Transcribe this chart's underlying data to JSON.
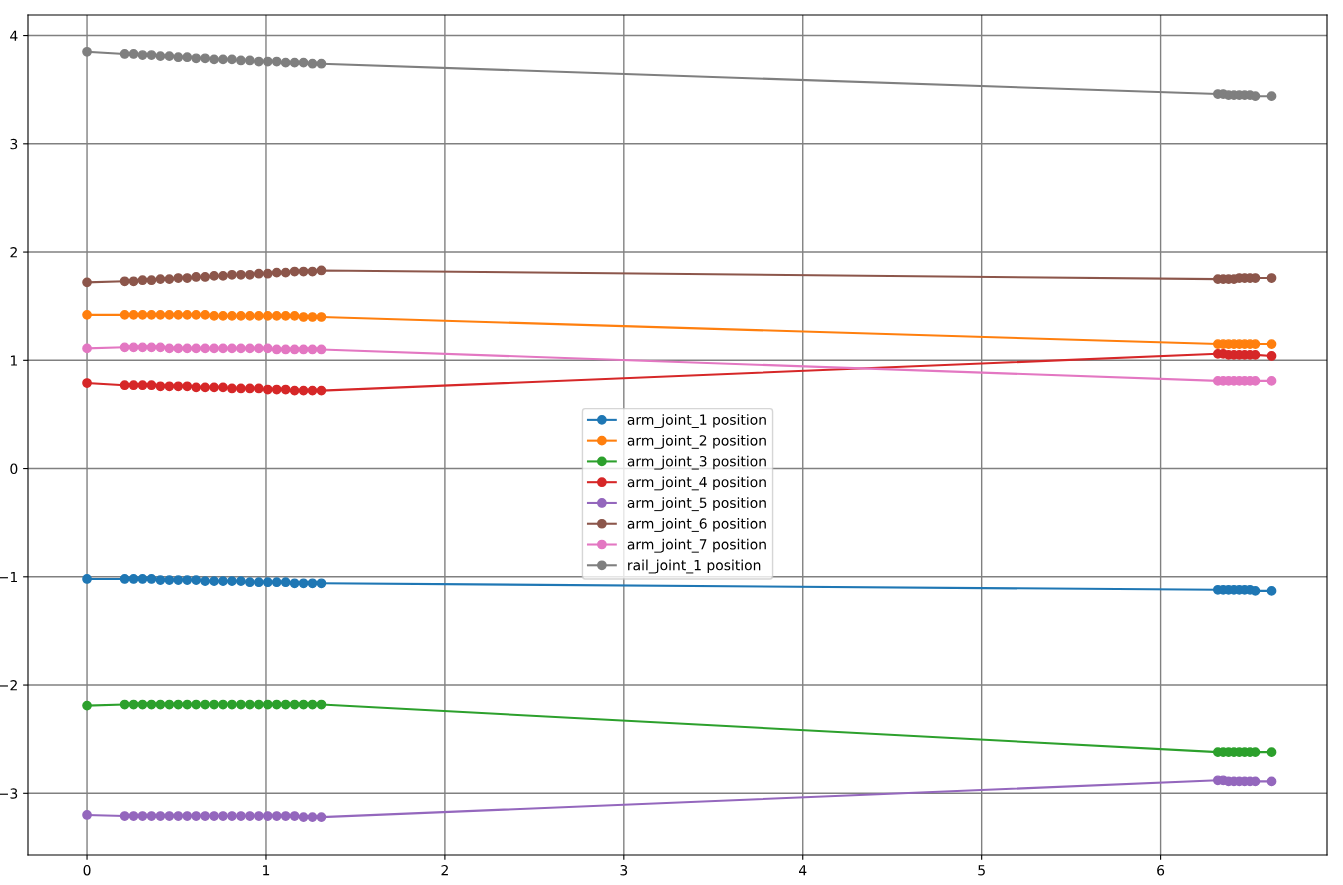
{
  "chart_data": {
    "type": "line",
    "x": [
      0,
      0.21,
      0.26,
      0.31,
      0.36,
      0.41,
      0.46,
      0.51,
      0.56,
      0.61,
      0.66,
      0.71,
      0.76,
      0.81,
      0.86,
      0.91,
      0.96,
      1.01,
      1.06,
      1.11,
      1.16,
      1.21,
      1.26,
      1.31,
      6.32,
      6.35,
      6.38,
      6.41,
      6.44,
      6.47,
      6.5,
      6.53,
      6.62
    ],
    "series": [
      {
        "name": "arm_joint_1 position",
        "color": "#1f77b4",
        "values": [
          -1.02,
          -1.02,
          -1.02,
          -1.02,
          -1.02,
          -1.03,
          -1.03,
          -1.03,
          -1.03,
          -1.03,
          -1.04,
          -1.04,
          -1.04,
          -1.04,
          -1.04,
          -1.05,
          -1.05,
          -1.05,
          -1.05,
          -1.05,
          -1.06,
          -1.06,
          -1.06,
          -1.06,
          -1.12,
          -1.12,
          -1.12,
          -1.12,
          -1.12,
          -1.12,
          -1.12,
          -1.13,
          -1.13
        ]
      },
      {
        "name": "arm_joint_2 position",
        "color": "#ff7f0e",
        "values": [
          1.42,
          1.42,
          1.42,
          1.42,
          1.42,
          1.42,
          1.42,
          1.42,
          1.42,
          1.42,
          1.42,
          1.41,
          1.41,
          1.41,
          1.41,
          1.41,
          1.41,
          1.41,
          1.41,
          1.41,
          1.41,
          1.4,
          1.4,
          1.4,
          1.15,
          1.15,
          1.15,
          1.15,
          1.15,
          1.15,
          1.15,
          1.15,
          1.15
        ]
      },
      {
        "name": "arm_joint_3 position",
        "color": "#2ca02c",
        "values": [
          -2.19,
          -2.18,
          -2.18,
          -2.18,
          -2.18,
          -2.18,
          -2.18,
          -2.18,
          -2.18,
          -2.18,
          -2.18,
          -2.18,
          -2.18,
          -2.18,
          -2.18,
          -2.18,
          -2.18,
          -2.18,
          -2.18,
          -2.18,
          -2.18,
          -2.18,
          -2.18,
          -2.18,
          -2.62,
          -2.62,
          -2.62,
          -2.62,
          -2.62,
          -2.62,
          -2.62,
          -2.62,
          -2.62
        ]
      },
      {
        "name": "arm_joint_4 position",
        "color": "#d62728",
        "values": [
          0.79,
          0.77,
          0.77,
          0.77,
          0.77,
          0.76,
          0.76,
          0.76,
          0.76,
          0.75,
          0.75,
          0.75,
          0.75,
          0.74,
          0.74,
          0.74,
          0.74,
          0.73,
          0.73,
          0.73,
          0.72,
          0.72,
          0.72,
          0.72,
          1.06,
          1.06,
          1.05,
          1.05,
          1.05,
          1.05,
          1.05,
          1.05,
          1.04
        ]
      },
      {
        "name": "arm_joint_5 position",
        "color": "#9467bd",
        "values": [
          -3.2,
          -3.21,
          -3.21,
          -3.21,
          -3.21,
          -3.21,
          -3.21,
          -3.21,
          -3.21,
          -3.21,
          -3.21,
          -3.21,
          -3.21,
          -3.21,
          -3.21,
          -3.21,
          -3.21,
          -3.21,
          -3.21,
          -3.21,
          -3.21,
          -3.22,
          -3.22,
          -3.22,
          -2.88,
          -2.88,
          -2.89,
          -2.89,
          -2.89,
          -2.89,
          -2.89,
          -2.89,
          -2.89
        ]
      },
      {
        "name": "arm_joint_6 position",
        "color": "#8c564b",
        "values": [
          1.72,
          1.73,
          1.73,
          1.74,
          1.74,
          1.75,
          1.75,
          1.76,
          1.76,
          1.77,
          1.77,
          1.78,
          1.78,
          1.79,
          1.79,
          1.79,
          1.8,
          1.8,
          1.81,
          1.81,
          1.82,
          1.82,
          1.82,
          1.83,
          1.75,
          1.75,
          1.75,
          1.75,
          1.76,
          1.76,
          1.76,
          1.76,
          1.76
        ]
      },
      {
        "name": "arm_joint_7 position",
        "color": "#e377c2",
        "values": [
          1.11,
          1.12,
          1.12,
          1.12,
          1.12,
          1.12,
          1.11,
          1.11,
          1.11,
          1.11,
          1.11,
          1.11,
          1.11,
          1.11,
          1.11,
          1.11,
          1.11,
          1.11,
          1.1,
          1.1,
          1.1,
          1.1,
          1.1,
          1.1,
          0.81,
          0.81,
          0.81,
          0.81,
          0.81,
          0.81,
          0.81,
          0.81,
          0.81
        ]
      },
      {
        "name": "rail_joint_1 position",
        "color": "#7f7f7f",
        "values": [
          3.85,
          3.83,
          3.83,
          3.82,
          3.82,
          3.81,
          3.81,
          3.8,
          3.8,
          3.79,
          3.79,
          3.78,
          3.78,
          3.78,
          3.77,
          3.77,
          3.76,
          3.76,
          3.76,
          3.75,
          3.75,
          3.75,
          3.74,
          3.74,
          3.46,
          3.46,
          3.45,
          3.45,
          3.45,
          3.45,
          3.45,
          3.44,
          3.44
        ]
      }
    ],
    "xlim": [
      -0.33,
      6.93
    ],
    "ylim": [
      -3.57,
      4.19
    ],
    "xticks": [
      0,
      1,
      2,
      3,
      4,
      5,
      6
    ],
    "yticks": [
      {
        "value": -3,
        "label": "−3"
      },
      {
        "value": -2,
        "label": "−2"
      },
      {
        "value": -1,
        "label": "−1"
      },
      0,
      1,
      2,
      3,
      4
    ],
    "grid": true,
    "legend": "center",
    "marker": "circle",
    "line_style": "solid"
  }
}
